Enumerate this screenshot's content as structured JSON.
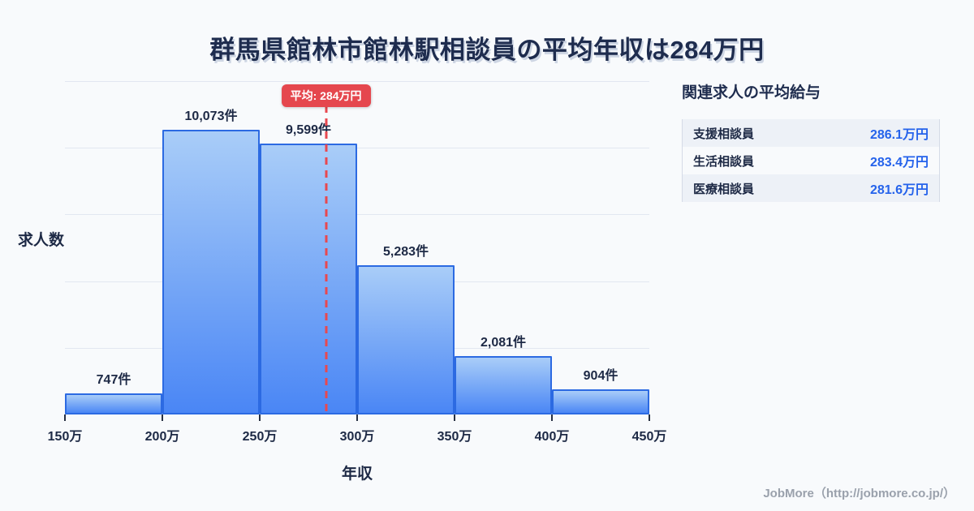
{
  "title": "群馬県館林市館林駅相談員の平均年収は284万円",
  "chart_data": {
    "type": "bar",
    "histogram": true,
    "title": "群馬県館林市館林駅相談員の平均年収は284万円",
    "xlabel": "年収",
    "ylabel": "求人数",
    "x_ticks": [
      "150万",
      "200万",
      "250万",
      "300万",
      "350万",
      "400万",
      "450万"
    ],
    "bin_edges_manyen": [
      150,
      200,
      250,
      300,
      350,
      400,
      450
    ],
    "x_range_manyen": [
      150,
      450
    ],
    "values": [
      747,
      10073,
      9599,
      5283,
      2081,
      904
    ],
    "bar_labels": [
      "747件",
      "10,073件",
      "9,599件",
      "5,283件",
      "2,081件",
      "904件"
    ],
    "ylim": [
      0,
      11800
    ],
    "grid": true,
    "gridline_count": 5,
    "average": {
      "value_manyen": 284,
      "label": "平均: 284万円"
    }
  },
  "side_panel": {
    "title": "関連求人の平均給与",
    "rows": [
      {
        "label": "支援相談員",
        "value": "286.1万円"
      },
      {
        "label": "生活相談員",
        "value": "283.4万円"
      },
      {
        "label": "医療相談員",
        "value": "281.6万円"
      }
    ]
  },
  "footer": {
    "credit": "JobMore（http://jobmore.co.jp/）"
  },
  "colors": {
    "background": "#f8fafc",
    "title_text": "#1e2c4e",
    "bar_gradient_top": "#a9cdf8",
    "bar_gradient_bottom": "#4a86f5",
    "bar_border": "#2c6ae2",
    "gridline": "#e2e7f1",
    "average_red": "#e5474e",
    "value_blue": "#2563eb",
    "row_alt_background": "#edf1f7",
    "table_border": "#d5dbe7",
    "footer_gray": "#9aa1ac"
  }
}
